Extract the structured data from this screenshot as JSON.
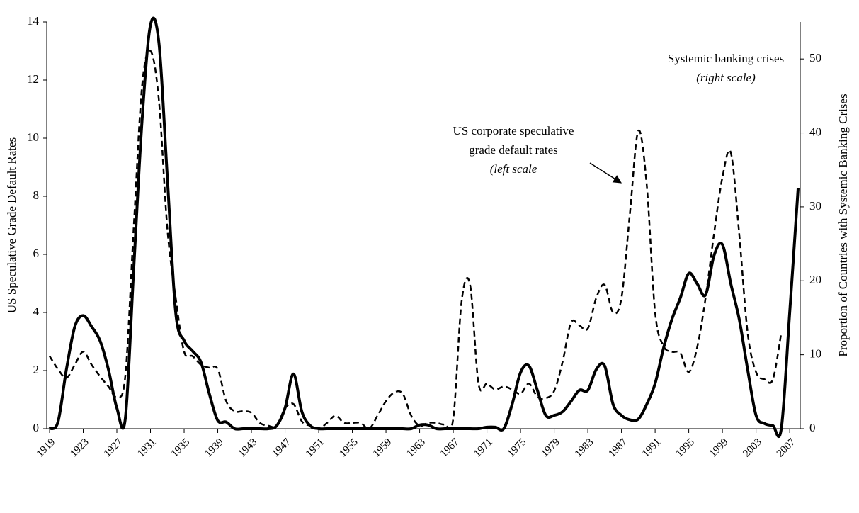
{
  "chart_data": {
    "type": "line",
    "y_label": "US Speculative Grade Default Rates",
    "y2_label": "Proportion of Countries with Systemic Banking Crises",
    "x": [
      1919,
      1920,
      1921,
      1922,
      1923,
      1924,
      1925,
      1926,
      1927,
      1928,
      1929,
      1930,
      1931,
      1932,
      1933,
      1934,
      1935,
      1936,
      1937,
      1938,
      1939,
      1940,
      1941,
      1942,
      1943,
      1944,
      1945,
      1946,
      1947,
      1948,
      1949,
      1950,
      1951,
      1952,
      1953,
      1954,
      1955,
      1956,
      1957,
      1958,
      1959,
      1960,
      1961,
      1962,
      1963,
      1964,
      1965,
      1966,
      1967,
      1968,
      1969,
      1970,
      1971,
      1972,
      1973,
      1974,
      1975,
      1976,
      1977,
      1978,
      1979,
      1980,
      1981,
      1982,
      1983,
      1984,
      1985,
      1986,
      1987,
      1988,
      1989,
      1990,
      1991,
      1992,
      1993,
      1994,
      1995,
      1996,
      1997,
      1998,
      1999,
      2000,
      2001,
      2002,
      2003,
      2004,
      2005,
      2006,
      2007,
      2008
    ],
    "xlim": [
      1919,
      2008
    ],
    "xticks": [
      1919,
      1923,
      1927,
      1931,
      1935,
      1939,
      1943,
      1947,
      1951,
      1955,
      1959,
      1963,
      1967,
      1971,
      1975,
      1979,
      1983,
      1987,
      1991,
      1995,
      1999,
      2003,
      2007
    ],
    "ylim": [
      0,
      14
    ],
    "yticks": [
      0,
      2,
      4,
      6,
      8,
      10,
      12,
      14
    ],
    "y2lim": [
      0,
      55
    ],
    "y2ticks": [
      0,
      10,
      20,
      30,
      40,
      50
    ],
    "series": [
      {
        "axis": "y2",
        "color": "#000000",
        "dash": "solid",
        "values": [
          0,
          0.9,
          8,
          13.8,
          15.3,
          13.8,
          11.9,
          8,
          2.8,
          1.3,
          21.5,
          41.7,
          54.6,
          52.2,
          34,
          15.7,
          11.9,
          10.5,
          9,
          4.7,
          1.1,
          0.9,
          0,
          0,
          0,
          0,
          0,
          0.4,
          2.8,
          7.4,
          2.3,
          0.4,
          0,
          0,
          0,
          0,
          0,
          0,
          0,
          0,
          0,
          0,
          0,
          0,
          0.5,
          0.5,
          0,
          0,
          0,
          0,
          0,
          0,
          0.2,
          0.2,
          0,
          3.3,
          7.6,
          8.5,
          5.2,
          1.8,
          1.8,
          2.3,
          3.7,
          5.2,
          5.2,
          8,
          8.5,
          3.3,
          1.8,
          1.2,
          1.3,
          3.3,
          6.1,
          10.9,
          14.8,
          17.7,
          21,
          19.6,
          18.1,
          23.4,
          24.9,
          19.6,
          14.8,
          8,
          1.8,
          0.7,
          0.4,
          0,
          15.7,
          32.5
        ]
      },
      {
        "axis": "y",
        "color": "#000000",
        "dash": "dashed",
        "values": [
          2.5,
          2.05,
          1.75,
          2.2,
          2.65,
          2.2,
          1.8,
          1.45,
          1.1,
          1.8,
          6.9,
          11.8,
          13,
          11.3,
          6.9,
          4.5,
          2.65,
          2.5,
          2.2,
          2.1,
          2.05,
          0.95,
          0.6,
          0.6,
          0.55,
          0.2,
          0.1,
          0.1,
          0.7,
          0.85,
          0.25,
          0.1,
          0,
          0.2,
          0.45,
          0.2,
          0.2,
          0.2,
          0,
          0.45,
          0.95,
          1.25,
          1.2,
          0.45,
          0.1,
          0.2,
          0.2,
          0.15,
          0.35,
          4.4,
          4.95,
          1.55,
          1.55,
          1.35,
          1.45,
          1.35,
          1.2,
          1.55,
          1.1,
          1.05,
          1.3,
          2.3,
          3.65,
          3.55,
          3.45,
          4.5,
          4.95,
          4.0,
          4.5,
          7.4,
          10.25,
          8.4,
          4.0,
          2.85,
          2.65,
          2.6,
          1.95,
          2.8,
          4.5,
          6.7,
          8.65,
          9.5,
          6.7,
          3.3,
          1.95,
          1.7,
          1.7,
          3.3,
          null,
          null
        ]
      }
    ],
    "annotations": [
      {
        "lines": [
          "Systemic banking crises",
          "(right scale)"
        ]
      },
      {
        "lines": [
          "US corporate speculative",
          "grade default rates",
          "(left scale"
        ]
      }
    ]
  }
}
